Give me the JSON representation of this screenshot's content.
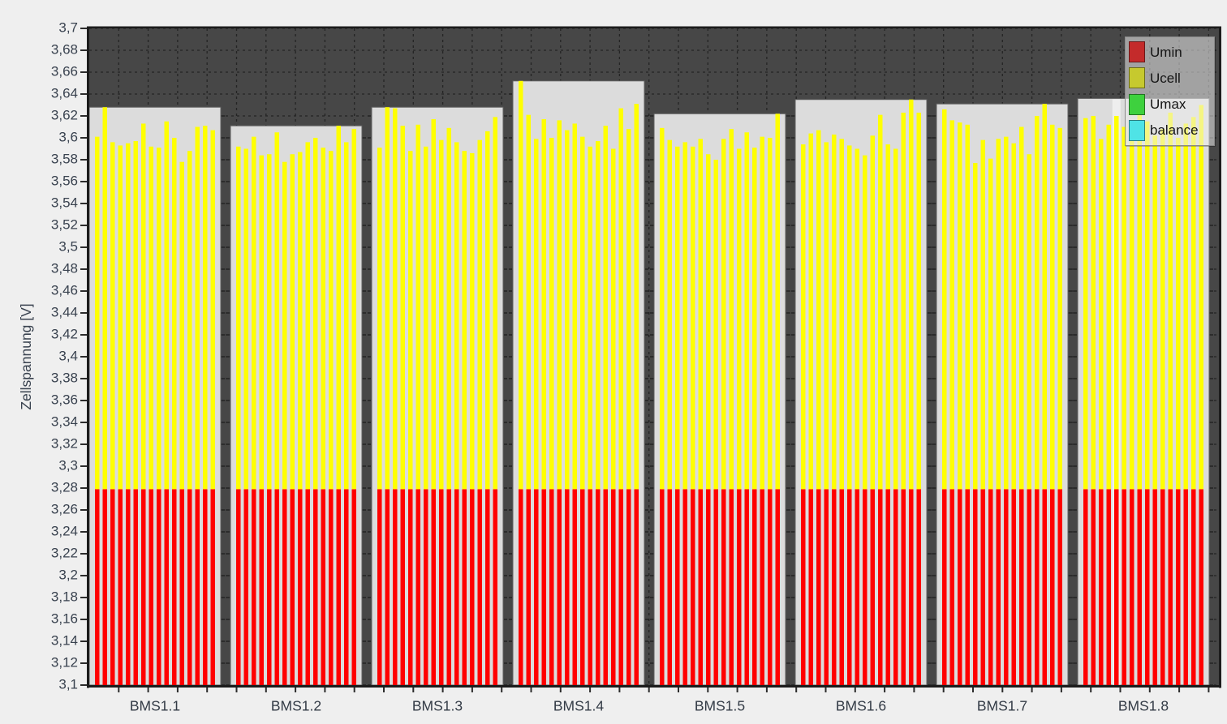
{
  "window": {
    "background": "#efefef"
  },
  "chart_data": {
    "type": "bar",
    "title": "",
    "ylabel": "Zellspannung [V]",
    "axis": {
      "y_min": 3.1,
      "y_max": 3.7,
      "y_step": 0.02,
      "decimal_separator": ",",
      "y_tick_labels": [
        "3,7",
        "3,68",
        "3,66",
        "3,64",
        "3,62",
        "3,6",
        "3,58",
        "3,56",
        "3,54",
        "3,52",
        "3,5",
        "3,48",
        "3,46",
        "3,44",
        "3,42",
        "3,4",
        "3,38",
        "3,36",
        "3,34",
        "3,32",
        "3,3",
        "3,28",
        "3,26",
        "3,24",
        "3,22",
        "3,2",
        "3,18",
        "3,16",
        "3,14",
        "3,12",
        "3,1"
      ],
      "grid": "dashed"
    },
    "umin": 3.279,
    "groups": [
      {
        "label": "BMS1.1",
        "umax": 3.628,
        "cells": [
          3.601,
          3.628,
          3.596,
          3.593,
          3.595,
          3.597,
          3.613,
          3.592,
          3.591,
          3.615,
          3.6,
          3.578,
          3.588,
          3.61,
          3.611,
          3.607
        ]
      },
      {
        "label": "BMS1.2",
        "umax": 3.611,
        "cells": [
          3.592,
          3.59,
          3.601,
          3.584,
          3.585,
          3.605,
          3.578,
          3.585,
          3.587,
          3.596,
          3.6,
          3.591,
          3.588,
          3.611,
          3.596,
          3.608
        ]
      },
      {
        "label": "BMS1.3",
        "umax": 3.628,
        "cells": [
          3.591,
          3.628,
          3.627,
          3.611,
          3.588,
          3.612,
          3.592,
          3.617,
          3.598,
          3.609,
          3.596,
          3.588,
          3.586,
          3.598,
          3.606,
          3.619
        ]
      },
      {
        "label": "BMS1.4",
        "umax": 3.652,
        "cells": [
          3.652,
          3.621,
          3.599,
          3.617,
          3.6,
          3.616,
          3.607,
          3.613,
          3.601,
          3.592,
          3.597,
          3.611,
          3.59,
          3.627,
          3.608,
          3.631
        ]
      },
      {
        "label": "BMS1.5",
        "umax": 3.622,
        "cells": [
          3.609,
          3.598,
          3.592,
          3.596,
          3.592,
          3.599,
          3.585,
          3.58,
          3.599,
          3.608,
          3.59,
          3.605,
          3.591,
          3.601,
          3.6,
          3.622
        ]
      },
      {
        "label": "BMS1.6",
        "umax": 3.635,
        "cells": [
          3.594,
          3.604,
          3.607,
          3.596,
          3.603,
          3.599,
          3.593,
          3.59,
          3.584,
          3.602,
          3.621,
          3.594,
          3.59,
          3.623,
          3.635,
          3.623
        ]
      },
      {
        "label": "BMS1.7",
        "umax": 3.631,
        "cells": [
          3.626,
          3.616,
          3.614,
          3.612,
          3.577,
          3.598,
          3.581,
          3.599,
          3.601,
          3.595,
          3.61,
          3.585,
          3.62,
          3.631,
          3.612,
          3.609
        ]
      },
      {
        "label": "BMS1.8",
        "umax": 3.636,
        "cells": [
          3.618,
          3.62,
          3.599,
          3.612,
          3.62,
          3.61,
          3.605,
          3.636,
          3.615,
          3.602,
          3.608,
          3.623,
          3.6,
          3.613,
          3.619,
          3.63
        ]
      }
    ],
    "highlight": {
      "group_index": 7,
      "cell_index": 4
    },
    "legend": [
      {
        "label": "Umin",
        "color": "#c42b2b"
      },
      {
        "label": "Ucell",
        "color": "#c6c92e"
      },
      {
        "label": "Umax",
        "color": "#3ed13e"
      },
      {
        "label": "balance",
        "color": "#4fe3e6"
      }
    ],
    "legend_position": "top-right",
    "colors": {
      "bar_red": "#ff0000",
      "bar_yellow": "#ffff00",
      "plot_bg": "#474747",
      "block_bg": "#dcdcdc",
      "block_border": "#5f5f5f",
      "grid": "#242424",
      "frame": "#1c1c1c",
      "tick": "#2c2c2c",
      "highlight": "rgba(255,255,255,0.5)"
    }
  }
}
